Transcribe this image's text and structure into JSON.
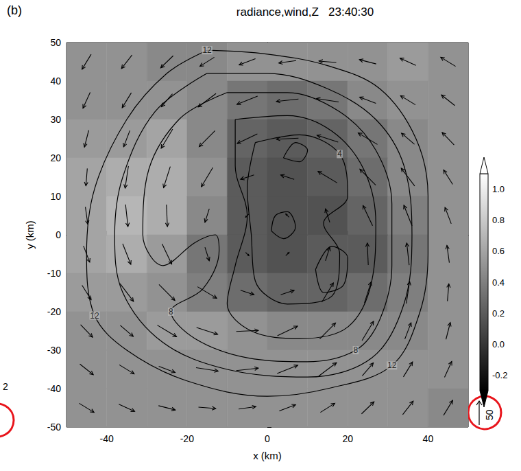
{
  "chart_data": {
    "type": "field",
    "panel_label": "(b)",
    "title": "radiance,wind,Z   23:40:30",
    "x_label": "x (km)",
    "y_label": "y (km)",
    "xlim": [
      -50,
      50
    ],
    "xticks": [
      -40,
      -20,
      0,
      20,
      40
    ],
    "ylim": [
      -50,
      50
    ],
    "yticks": [
      -50,
      -40,
      -30,
      -20,
      -10,
      0,
      10,
      20,
      30,
      40,
      50
    ],
    "radiance": {
      "x": [
        -45,
        -35,
        -25,
        -15,
        -5,
        5,
        15,
        25,
        35,
        45
      ],
      "y": [
        45,
        35,
        25,
        15,
        5,
        -5,
        -15,
        -25,
        -35,
        -45
      ],
      "values": [
        [
          0.5,
          0.5,
          0.45,
          0.45,
          0.5,
          0.5,
          0.5,
          0.5,
          0.55,
          0.5
        ],
        [
          0.5,
          0.5,
          0.5,
          0.45,
          0.35,
          0.3,
          0.35,
          0.45,
          0.5,
          0.5
        ],
        [
          0.55,
          0.55,
          0.6,
          0.45,
          0.25,
          0.2,
          0.25,
          0.35,
          0.45,
          0.5
        ],
        [
          0.6,
          0.65,
          0.65,
          0.5,
          0.2,
          0.15,
          0.2,
          0.3,
          0.45,
          0.5
        ],
        [
          0.6,
          0.7,
          0.65,
          0.45,
          0.2,
          0.15,
          0.15,
          0.25,
          0.4,
          0.5
        ],
        [
          0.6,
          0.65,
          0.55,
          0.35,
          0.2,
          0.15,
          0.2,
          0.2,
          0.35,
          0.5
        ],
        [
          0.55,
          0.55,
          0.5,
          0.4,
          0.3,
          0.25,
          0.25,
          0.3,
          0.4,
          0.5
        ],
        [
          0.5,
          0.5,
          0.55,
          0.55,
          0.5,
          0.45,
          0.45,
          0.45,
          0.45,
          0.5
        ],
        [
          0.5,
          0.5,
          0.5,
          0.5,
          0.5,
          0.5,
          0.5,
          0.5,
          0.5,
          0.5
        ],
        [
          0.5,
          0.5,
          0.5,
          0.5,
          0.5,
          0.5,
          0.5,
          0.5,
          0.5,
          0.45
        ]
      ]
    },
    "colorbar": {
      "range": [
        -0.3,
        1.1
      ],
      "ticks": [
        {
          "value": 1,
          "label": "1.0"
        },
        0.8,
        0.6,
        0.4,
        0.2,
        {
          "value": 0,
          "label": "0.0"
        },
        -0.2
      ]
    },
    "wind": {
      "reference": 50,
      "vectors": [
        [
          -45,
          45,
          -19,
          -31
        ],
        [
          -35,
          45,
          -22,
          -28
        ],
        [
          -25,
          45,
          -26,
          -25
        ],
        [
          -15,
          45,
          -30,
          -19
        ],
        [
          -5,
          45,
          -34,
          -13
        ],
        [
          5,
          45,
          -36,
          -5
        ],
        [
          15,
          45,
          -36,
          3
        ],
        [
          25,
          45,
          -35,
          9
        ],
        [
          35,
          45,
          -33,
          15
        ],
        [
          45,
          45,
          -31,
          19
        ],
        [
          -45,
          35,
          -15,
          -33
        ],
        [
          -35,
          35,
          -19,
          -31
        ],
        [
          -25,
          35,
          -23,
          -27
        ],
        [
          -15,
          35,
          -37,
          -28
        ],
        [
          -5,
          35,
          -43,
          -17
        ],
        [
          5,
          35,
          -46,
          -5
        ],
        [
          15,
          35,
          -46,
          7
        ],
        [
          25,
          35,
          -34,
          13
        ],
        [
          35,
          35,
          -31,
          19
        ],
        [
          45,
          35,
          -28,
          22
        ],
        [
          -45,
          25,
          -9,
          -35
        ],
        [
          -35,
          25,
          -13,
          -34
        ],
        [
          -25,
          25,
          -24,
          -40
        ],
        [
          -15,
          25,
          -33,
          -33
        ],
        [
          -5,
          25,
          -42,
          -20
        ],
        [
          5,
          25,
          -46,
          -2
        ],
        [
          15,
          25,
          -44,
          14
        ],
        [
          25,
          25,
          -40,
          24
        ],
        [
          35,
          25,
          -27,
          23
        ],
        [
          45,
          25,
          -25,
          26
        ],
        [
          -45,
          15,
          -3,
          -36
        ],
        [
          -35,
          15,
          -7,
          -46
        ],
        [
          -25,
          15,
          -14,
          -44
        ],
        [
          -15,
          15,
          -24,
          -40
        ],
        [
          -5,
          15,
          -28,
          -9
        ],
        [
          5,
          15,
          -28,
          9
        ],
        [
          15,
          15,
          -40,
          24
        ],
        [
          25,
          15,
          -33,
          33
        ],
        [
          35,
          15,
          -28,
          37
        ],
        [
          45,
          15,
          -19,
          30
        ],
        [
          -45,
          5,
          5,
          -36
        ],
        [
          -35,
          5,
          5,
          -46
        ],
        [
          -25,
          5,
          2,
          -46
        ],
        [
          -15,
          5,
          -9,
          -28
        ],
        [
          -5,
          5,
          -7,
          -7
        ],
        [
          5,
          5,
          -7,
          7
        ],
        [
          15,
          5,
          -9,
          28
        ],
        [
          25,
          5,
          -20,
          42
        ],
        [
          35,
          5,
          -17,
          43
        ],
        [
          45,
          5,
          -13,
          34
        ],
        [
          -45,
          -5,
          13,
          -34
        ],
        [
          -35,
          -5,
          17,
          -43
        ],
        [
          -25,
          -5,
          20,
          -42
        ],
        [
          -15,
          -5,
          9,
          -28
        ],
        [
          -5,
          -5,
          7,
          -7
        ],
        [
          5,
          -5,
          7,
          7
        ],
        [
          15,
          -5,
          9,
          28
        ],
        [
          25,
          -5,
          -2,
          46
        ],
        [
          35,
          -5,
          -5,
          46
        ],
        [
          45,
          -5,
          -5,
          36
        ],
        [
          -45,
          -15,
          19,
          -30
        ],
        [
          -35,
          -15,
          28,
          -37
        ],
        [
          -25,
          -15,
          33,
          -33
        ],
        [
          -15,
          -15,
          40,
          -24
        ],
        [
          -5,
          -15,
          28,
          -9
        ],
        [
          5,
          -15,
          28,
          9
        ],
        [
          15,
          -15,
          24,
          40
        ],
        [
          25,
          -15,
          14,
          44
        ],
        [
          35,
          -15,
          7,
          46
        ],
        [
          45,
          -15,
          3,
          36
        ],
        [
          -45,
          -25,
          25,
          -26
        ],
        [
          -35,
          -25,
          27,
          -23
        ],
        [
          -25,
          -25,
          40,
          -24
        ],
        [
          -15,
          -25,
          44,
          -14
        ],
        [
          -5,
          -25,
          46,
          2
        ],
        [
          5,
          -25,
          42,
          20
        ],
        [
          15,
          -25,
          33,
          33
        ],
        [
          25,
          -25,
          24,
          40
        ],
        [
          35,
          -25,
          13,
          34
        ],
        [
          45,
          -25,
          9,
          35
        ],
        [
          -45,
          -35,
          28,
          -22
        ],
        [
          -35,
          -35,
          31,
          -19
        ],
        [
          -25,
          -35,
          34,
          -13
        ],
        [
          -15,
          -35,
          46,
          -7
        ],
        [
          -5,
          -35,
          46,
          5
        ],
        [
          5,
          -35,
          43,
          17
        ],
        [
          15,
          -35,
          37,
          28
        ],
        [
          25,
          -35,
          23,
          27
        ],
        [
          35,
          -35,
          19,
          31
        ],
        [
          45,
          -35,
          15,
          33
        ],
        [
          -45,
          -45,
          31,
          -19
        ],
        [
          -35,
          -45,
          33,
          -15
        ],
        [
          -25,
          -45,
          35,
          -9
        ],
        [
          -15,
          -45,
          36,
          -3
        ],
        [
          -5,
          -45,
          36,
          5
        ],
        [
          5,
          -45,
          34,
          13
        ],
        [
          15,
          -45,
          30,
          19
        ],
        [
          25,
          -45,
          26,
          25
        ],
        [
          35,
          -45,
          22,
          28
        ],
        [
          45,
          -45,
          19,
          31
        ]
      ]
    },
    "contours": [
      {
        "level": 12,
        "points": [
          [
            -15,
            48
          ],
          [
            0,
            47
          ],
          [
            15,
            44
          ],
          [
            28,
            38
          ],
          [
            37,
            25
          ],
          [
            40,
            10
          ],
          [
            40,
            -5
          ],
          [
            38,
            -20
          ],
          [
            31,
            -34
          ],
          [
            15,
            -40
          ],
          [
            0,
            -42
          ],
          [
            -20,
            -38
          ],
          [
            -35,
            -30
          ],
          [
            -43,
            -21
          ],
          [
            -45,
            -5
          ],
          [
            -43,
            12
          ],
          [
            -35,
            30
          ],
          [
            -25,
            42
          ],
          [
            -15,
            48
          ]
        ]
      },
      {
        "level": 10,
        "points": [
          [
            -15,
            42
          ],
          [
            0,
            42
          ],
          [
            15,
            38
          ],
          [
            27,
            30
          ],
          [
            34,
            18
          ],
          [
            36,
            0
          ],
          [
            34,
            -18
          ],
          [
            26,
            -32
          ],
          [
            10,
            -37
          ],
          [
            -10,
            -35
          ],
          [
            -26,
            -28
          ],
          [
            -36,
            -15
          ],
          [
            -38,
            0
          ],
          [
            -36,
            15
          ],
          [
            -28,
            32
          ],
          [
            -15,
            42
          ]
        ]
      },
      {
        "level": 8,
        "points": [
          [
            -10,
            37
          ],
          [
            5,
            37
          ],
          [
            18,
            32
          ],
          [
            27,
            22
          ],
          [
            31,
            8
          ],
          [
            31,
            -8
          ],
          [
            28,
            -22
          ],
          [
            22,
            -30
          ],
          [
            10,
            -33
          ],
          [
            -5,
            -32
          ],
          [
            -18,
            -27
          ],
          [
            -24,
            -20
          ],
          [
            -16,
            -14
          ],
          [
            -12,
            -4
          ],
          [
            -13,
            0
          ],
          [
            -18,
            -2
          ],
          [
            -26,
            -8
          ],
          [
            -31,
            0
          ],
          [
            -30,
            15
          ],
          [
            -22,
            30
          ],
          [
            -10,
            37
          ]
        ]
      },
      {
        "level": 6,
        "points": [
          [
            -8,
            30
          ],
          [
            5,
            31
          ],
          [
            16,
            27
          ],
          [
            24,
            17
          ],
          [
            27,
            3
          ],
          [
            26,
            -12
          ],
          [
            20,
            -24
          ],
          [
            8,
            -27
          ],
          [
            -4,
            -25
          ],
          [
            -10,
            -18
          ],
          [
            -8,
            -8
          ],
          [
            -5,
            5
          ],
          [
            -8,
            18
          ],
          [
            -8,
            30
          ]
        ]
      },
      {
        "level": 4,
        "points": [
          [
            -3,
            24
          ],
          [
            8,
            26
          ],
          [
            18,
            21
          ],
          [
            20,
            10
          ],
          [
            14,
            3
          ],
          [
            18,
            -5
          ],
          [
            16,
            -16
          ],
          [
            5,
            -18
          ],
          [
            -3,
            -12
          ],
          [
            -4,
            0
          ],
          [
            -5,
            12
          ],
          [
            -3,
            24
          ]
        ]
      },
      {
        "level": 2,
        "points": [
          [
            1,
            1
          ],
          [
            4,
            -1
          ],
          [
            7,
            2
          ],
          [
            5,
            6
          ],
          [
            2,
            5
          ],
          [
            1,
            1
          ]
        ]
      },
      {
        "level": 2,
        "points": [
          [
            12,
            -9
          ],
          [
            14,
            -15
          ],
          [
            19,
            -13
          ],
          [
            20,
            -6
          ],
          [
            16,
            -3
          ],
          [
            12,
            -9
          ]
        ]
      },
      {
        "level": 2,
        "points": [
          [
            4,
            20
          ],
          [
            8,
            19
          ],
          [
            10,
            22
          ],
          [
            7,
            24
          ],
          [
            4,
            20
          ]
        ]
      }
    ],
    "contour_labels": [
      {
        "level": 12,
        "x": -15,
        "y": 48
      },
      {
        "level": 12,
        "x": 31,
        "y": -34
      },
      {
        "level": 12,
        "x": -43,
        "y": -21
      },
      {
        "level": 8,
        "x": -24,
        "y": -20
      },
      {
        "level": 8,
        "x": 22,
        "y": -30
      },
      {
        "level": 4,
        "x": 18,
        "y": 21
      }
    ],
    "annotations": [
      "2"
    ]
  }
}
